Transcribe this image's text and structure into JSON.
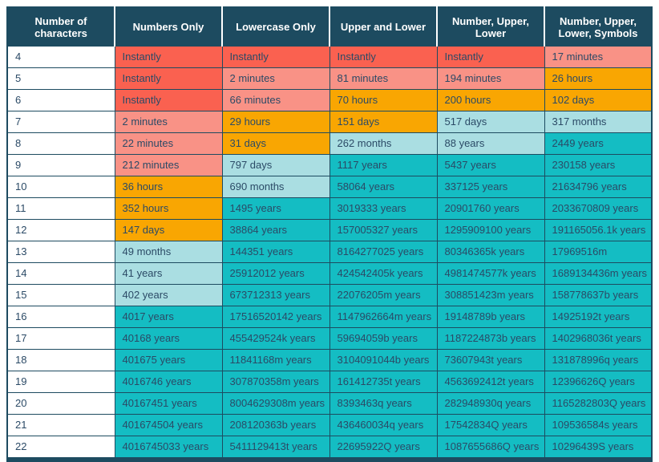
{
  "palette": {
    "header_bg": "#1d4b60",
    "header_text": "#ffffff",
    "cell_text": "#2b4a66",
    "border": "#1d4b60",
    "first_col_bg": "#ffffff",
    "red": "#fa6150",
    "salmon": "#f99286",
    "orange": "#f9a602",
    "cyan": "#aadee2",
    "teal": "#14bdc3"
  },
  "chart_data": {
    "type": "table",
    "columns": [
      "Number of characters",
      "Numbers Only",
      "Lowercase Only",
      "Upper and Lower",
      "Number, Upper, Lower",
      "Number, Upper, Lower, Symbols"
    ],
    "rows": [
      {
        "chars": "4",
        "values": [
          "Instantly",
          "Instantly",
          "Instantly",
          "Instantly",
          "17 minutes"
        ],
        "colors": [
          "red",
          "red",
          "red",
          "red",
          "salmon"
        ]
      },
      {
        "chars": "5",
        "values": [
          "Instantly",
          "2 minutes",
          "81 minutes",
          "194 minutes",
          "26 hours"
        ],
        "colors": [
          "red",
          "salmon",
          "salmon",
          "salmon",
          "orange"
        ]
      },
      {
        "chars": "6",
        "values": [
          "Instantly",
          "66 minutes",
          "70 hours",
          "200 hours",
          "102 days"
        ],
        "colors": [
          "red",
          "salmon",
          "orange",
          "orange",
          "orange"
        ]
      },
      {
        "chars": "7",
        "values": [
          "2 minutes",
          "29 hours",
          "151 days",
          "517 days",
          "317 months"
        ],
        "colors": [
          "salmon",
          "orange",
          "orange",
          "cyan",
          "cyan"
        ]
      },
      {
        "chars": "8",
        "values": [
          "22 minutes",
          "31 days",
          "262 months",
          "88 years",
          "2449 years"
        ],
        "colors": [
          "salmon",
          "orange",
          "cyan",
          "cyan",
          "teal"
        ]
      },
      {
        "chars": "9",
        "values": [
          "212 minutes",
          "797 days",
          "1117 years",
          "5437 years",
          "230158 years"
        ],
        "colors": [
          "salmon",
          "cyan",
          "teal",
          "teal",
          "teal"
        ]
      },
      {
        "chars": "10",
        "values": [
          "36 hours",
          "690 months",
          "58064 years",
          "337125 years",
          "21634796 years"
        ],
        "colors": [
          "orange",
          "cyan",
          "teal",
          "teal",
          "teal"
        ]
      },
      {
        "chars": "11",
        "values": [
          "352 hours",
          "1495 years",
          "3019333 years",
          "20901760 years",
          "2033670809 years"
        ],
        "colors": [
          "orange",
          "teal",
          "teal",
          "teal",
          "teal"
        ]
      },
      {
        "chars": "12",
        "values": [
          "147 days",
          "38864 years",
          "157005327 years",
          "1295909100 years",
          "191165056.1k years"
        ],
        "colors": [
          "orange",
          "teal",
          "teal",
          "teal",
          "teal"
        ]
      },
      {
        "chars": "13",
        "values": [
          "49 months",
          "144351 years",
          "8164277025 years",
          "80346365k years",
          "17969516m"
        ],
        "colors": [
          "cyan",
          "teal",
          "teal",
          "teal",
          "teal"
        ]
      },
      {
        "chars": "14",
        "values": [
          "41 years",
          "25912012 years",
          "424542405k years",
          "4981474577k years",
          "1689134436m years"
        ],
        "colors": [
          "cyan",
          "teal",
          "teal",
          "teal",
          "teal"
        ]
      },
      {
        "chars": "15",
        "values": [
          "402 years",
          "673712313 years",
          "22076205m years",
          "308851423m years",
          "158778637b years"
        ],
        "colors": [
          "cyan",
          "teal",
          "teal",
          "teal",
          "teal"
        ]
      },
      {
        "chars": "16",
        "values": [
          "4017 years",
          "17516520142 years",
          "1147962664m years",
          "19148789b years",
          "14925192t years"
        ],
        "colors": [
          "teal",
          "teal",
          "teal",
          "teal",
          "teal"
        ]
      },
      {
        "chars": "17",
        "values": [
          "40168 years",
          "455429524k years",
          "59694059b years",
          "1187224873b years",
          "1402968036t years"
        ],
        "colors": [
          "teal",
          "teal",
          "teal",
          "teal",
          "teal"
        ]
      },
      {
        "chars": "18",
        "values": [
          "401675 years",
          "11841168m years",
          "3104091044b years",
          "73607943t years",
          "131878996q years"
        ],
        "colors": [
          "teal",
          "teal",
          "teal",
          "teal",
          "teal"
        ]
      },
      {
        "chars": "19",
        "values": [
          "4016746 years",
          "307870358m years",
          "161412735t years",
          "4563692412t years",
          "12396626Q years"
        ],
        "colors": [
          "teal",
          "teal",
          "teal",
          "teal",
          "teal"
        ]
      },
      {
        "chars": "20",
        "values": [
          "40167451 years",
          "8004629308m years",
          "8393463q years",
          "282948930q years",
          "1165282803Q years"
        ],
        "colors": [
          "teal",
          "teal",
          "teal",
          "teal",
          "teal"
        ]
      },
      {
        "chars": "21",
        "values": [
          "401674504 years",
          "208120363b years",
          "436460034q years",
          "17542834Q years",
          "109536584s years"
        ],
        "colors": [
          "teal",
          "teal",
          "teal",
          "teal",
          "teal"
        ]
      },
      {
        "chars": "22",
        "values": [
          "4016745033 years",
          "5411129413t years",
          "22695922Q years",
          "1087655686Q years",
          "10296439S years"
        ],
        "colors": [
          "teal",
          "teal",
          "teal",
          "teal",
          "teal"
        ]
      }
    ]
  }
}
